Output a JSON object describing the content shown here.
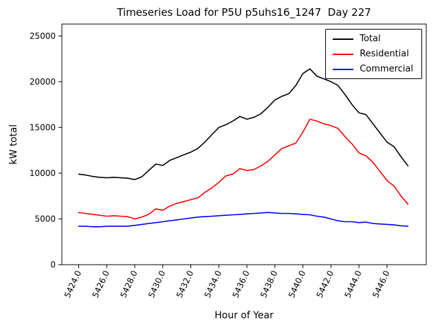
{
  "chart_data": {
    "type": "line",
    "title": "Timeseries Load for P5U p5uhs16_1247  Day 227",
    "xlabel": "Hour of Year",
    "ylabel": "kW total",
    "xlim": [
      5422.8,
      5448.8
    ],
    "ylim": [
      0,
      26300
    ],
    "grid": false,
    "legend_position": "upper right",
    "xticks": [
      5424,
      5426,
      5428,
      5430,
      5432,
      5434,
      5436,
      5438,
      5440,
      5442,
      5444,
      5446
    ],
    "xtick_labels": [
      "5424.0",
      "5426.0",
      "5428.0",
      "5430.0",
      "5432.0",
      "5434.0",
      "5436.0",
      "5438.0",
      "5440.0",
      "5442.0",
      "5444.0",
      "5446.0"
    ],
    "yticks": [
      0,
      5000,
      10000,
      15000,
      20000,
      25000
    ],
    "ytick_labels": [
      "0",
      "5000",
      "10000",
      "15000",
      "20000",
      "25000"
    ],
    "x": [
      5424.0,
      5424.5,
      5425.0,
      5425.5,
      5426.0,
      5426.5,
      5427.0,
      5427.5,
      5428.0,
      5428.5,
      5429.0,
      5429.5,
      5430.0,
      5430.5,
      5431.0,
      5431.5,
      5432.0,
      5432.5,
      5433.0,
      5433.5,
      5434.0,
      5434.5,
      5435.0,
      5435.5,
      5436.0,
      5436.5,
      5437.0,
      5437.5,
      5438.0,
      5438.5,
      5439.0,
      5439.5,
      5440.0,
      5440.5,
      5441.0,
      5441.5,
      5442.0,
      5442.5,
      5443.0,
      5443.5,
      5444.0,
      5444.5,
      5445.0,
      5445.5,
      5446.0,
      5446.5,
      5447.0,
      5447.5
    ],
    "series": [
      {
        "name": "Total",
        "color": "#000000",
        "values": [
          9900,
          9800,
          9650,
          9550,
          9500,
          9550,
          9500,
          9450,
          9300,
          9600,
          10300,
          11000,
          10850,
          11400,
          11700,
          12000,
          12300,
          12700,
          13400,
          14200,
          15000,
          15300,
          15700,
          16200,
          15900,
          16100,
          16500,
          17200,
          18000,
          18400,
          18700,
          19600,
          20900,
          21400,
          20600,
          20300,
          20000,
          19600,
          18600,
          17500,
          16600,
          16400,
          15400,
          14400,
          13400,
          12900,
          11800,
          10800
        ]
      },
      {
        "name": "Residential",
        "color": "#ff0000",
        "values": [
          5700,
          5600,
          5500,
          5400,
          5300,
          5350,
          5300,
          5250,
          5000,
          5200,
          5500,
          6100,
          5950,
          6400,
          6700,
          6900,
          7100,
          7300,
          7900,
          8400,
          9000,
          9700,
          9900,
          10500,
          10300,
          10400,
          10800,
          11300,
          12000,
          12700,
          13000,
          13300,
          14500,
          15900,
          15700,
          15400,
          15200,
          14900,
          14000,
          13200,
          12200,
          11900,
          11200,
          10200,
          9200,
          8600,
          7500,
          6600
        ]
      },
      {
        "name": "Commercial",
        "color": "#0000ff",
        "values": [
          4200,
          4200,
          4150,
          4150,
          4200,
          4200,
          4200,
          4200,
          4300,
          4400,
          4500,
          4600,
          4700,
          4800,
          4900,
          5000,
          5100,
          5200,
          5250,
          5300,
          5350,
          5400,
          5450,
          5500,
          5550,
          5600,
          5650,
          5700,
          5650,
          5600,
          5600,
          5550,
          5500,
          5450,
          5300,
          5200,
          5000,
          4800,
          4700,
          4700,
          4600,
          4650,
          4500,
          4450,
          4400,
          4350,
          4250,
          4200
        ]
      }
    ]
  }
}
